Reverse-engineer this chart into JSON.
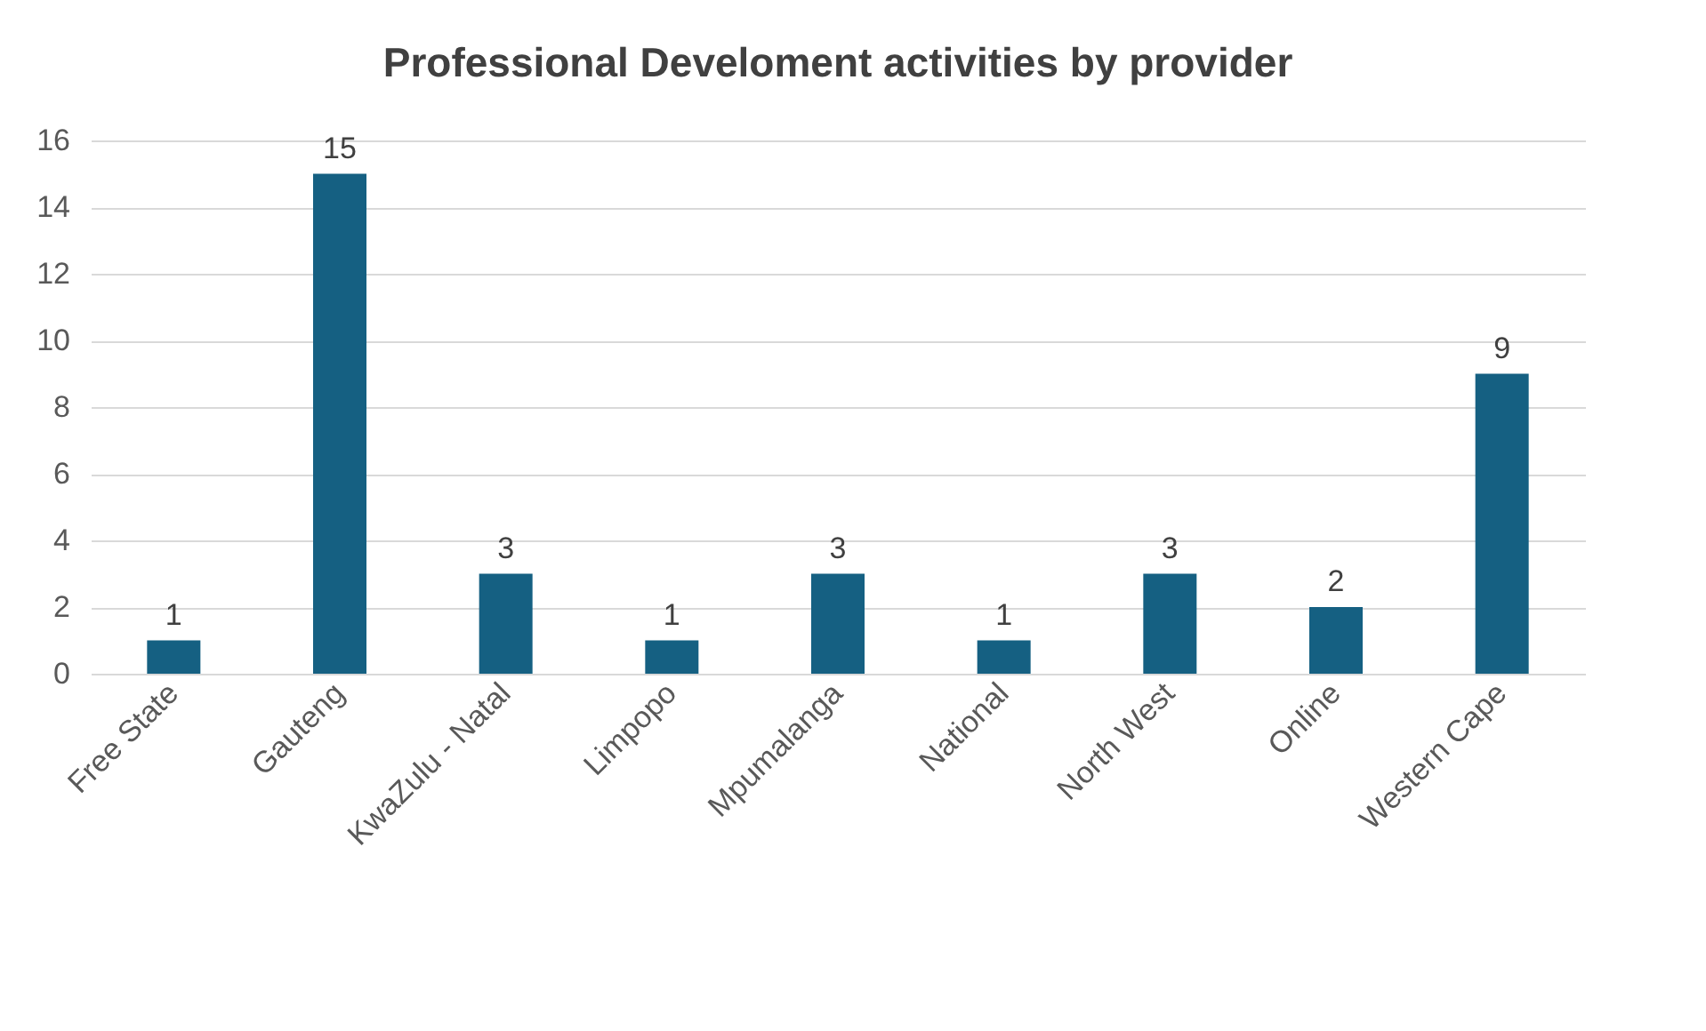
{
  "chart_data": {
    "type": "bar",
    "title": "Professional Develoment activities by provider",
    "categories": [
      "Free State",
      "Gauteng",
      "KwaZulu - Natal",
      "Limpopo",
      "Mpumalanga",
      "National",
      "North West",
      "Online",
      "Western Cape"
    ],
    "values": [
      1,
      15,
      3,
      1,
      3,
      1,
      3,
      2,
      9
    ],
    "color": "#156082",
    "ylim": [
      0,
      16
    ],
    "yticks": [
      0,
      2,
      4,
      6,
      8,
      10,
      12,
      14,
      16
    ],
    "grid": "y",
    "data_labels": true
  }
}
